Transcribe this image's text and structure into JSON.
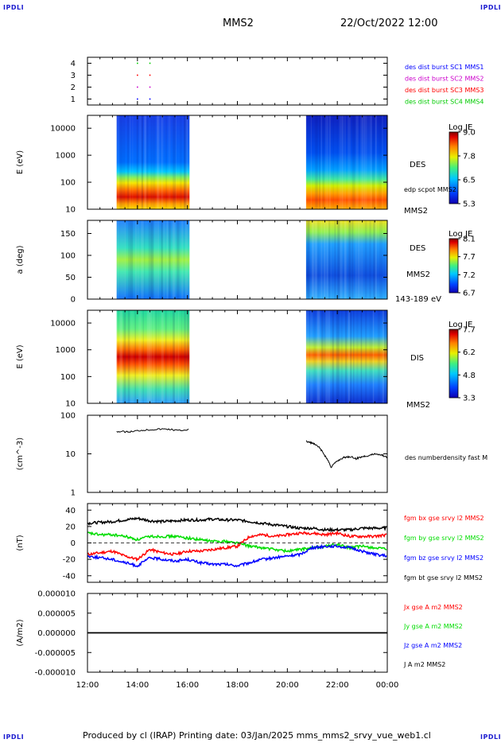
{
  "header": {
    "corner_tl": "IPDLI",
    "corner_tr": "IPDLI",
    "corner_bl": "IPDLI",
    "corner_br": "IPDLI",
    "spacecraft": "MMS2",
    "date_time": "22/Oct/2022 12:00"
  },
  "footer": {
    "credit": "Produced by cl (IRAP)   Printing date: 03/Jan/2025   mms_mms2_srvy_vue_web1.cl"
  },
  "colors": {
    "mms1": "#0000ff",
    "mms2": "#cc00cc",
    "mms3": "#ff0000",
    "mms4": "#00cc00",
    "bx": "#ff0000",
    "by": "#00dd00",
    "bz": "#0000ff",
    "bt": "#000000"
  },
  "chart_data": [
    {
      "type": "scatter",
      "panel": "burst",
      "yticks": [
        "4",
        "3",
        "2",
        "1"
      ],
      "ylim": [
        0.5,
        4.5
      ],
      "series": [
        {
          "name": "des dist burst SC1 MMS1",
          "color": "#0000ff",
          "y": 1,
          "x": [
            "14:00",
            "14:30"
          ]
        },
        {
          "name": "des dist burst SC2 MMS2",
          "color": "#cc00cc",
          "y": 2,
          "x": [
            "14:00",
            "14:30"
          ]
        },
        {
          "name": "des dist burst SC3 MMS3",
          "color": "#ff0000",
          "y": 3,
          "x": [
            "14:00",
            "14:30"
          ]
        },
        {
          "name": "des dist burst SC4 MMS4",
          "color": "#00cc00",
          "y": 4,
          "x": [
            "14:00",
            "14:30"
          ]
        }
      ]
    },
    {
      "type": "heatmap",
      "panel": "des_energy",
      "ylabel": "E (eV)",
      "yscale": "log",
      "ylim": [
        10,
        30000
      ],
      "yticks": [
        "10000",
        "1000",
        "100",
        "10"
      ],
      "label": "DES",
      "sublabel": "MMS2",
      "overlay_label": "edp scpot MMS2",
      "colorbar": {
        "title": "Log JE",
        "ticks": [
          "9.0",
          "7.8",
          "6.5",
          "5.3"
        ],
        "range": [
          5.3,
          9.0
        ]
      },
      "data_intervals": [
        [
          "13:10",
          "16:05"
        ],
        [
          "20:45",
          "00:00"
        ]
      ]
    },
    {
      "type": "heatmap",
      "panel": "des_pitch",
      "ylabel": "a (deg)",
      "ylim": [
        0,
        180
      ],
      "yticks": [
        "150",
        "100",
        "50",
        "0"
      ],
      "label": "DES",
      "sublabel": "MMS2",
      "energy_range": "143-189 eV",
      "colorbar": {
        "title": "Log JE",
        "ticks": [
          "8.1",
          "7.7",
          "7.2",
          "6.7"
        ],
        "range": [
          6.7,
          8.1
        ]
      },
      "data_intervals": [
        [
          "13:10",
          "16:05"
        ],
        [
          "20:45",
          "00:00"
        ]
      ]
    },
    {
      "type": "heatmap",
      "panel": "dis_energy",
      "ylabel": "E (eV)",
      "yscale": "log",
      "ylim": [
        10,
        30000
      ],
      "yticks": [
        "10000",
        "1000",
        "100",
        "10"
      ],
      "label": "DIS",
      "sublabel": "MMS2",
      "colorbar": {
        "title": "Log JE",
        "ticks": [
          "7.7",
          "6.2",
          "4.8",
          "3.3"
        ],
        "range": [
          3.3,
          7.7
        ]
      },
      "data_intervals": [
        [
          "13:10",
          "16:05"
        ],
        [
          "20:45",
          "00:00"
        ]
      ]
    },
    {
      "type": "line",
      "panel": "density",
      "ylabel": "(cm^-3)",
      "yscale": "log",
      "ylim": [
        1,
        100
      ],
      "yticks": [
        "100",
        "10",
        "1"
      ],
      "series": [
        {
          "name": "des numberdensity fast M",
          "color": "#000000",
          "segments": [
            {
              "x": [
                "13:10",
                "13:40",
                "14:10",
                "14:40",
                "15:10",
                "15:40",
                "16:05"
              ],
              "y": [
                38,
                37,
                41,
                43,
                44,
                40,
                43
              ]
            },
            {
              "x": [
                "20:45",
                "21:00",
                "21:15",
                "21:30",
                "21:45",
                "22:00",
                "22:15",
                "22:30",
                "22:45",
                "23:00",
                "23:15",
                "23:30",
                "23:45",
                "00:00"
              ],
              "y": [
                21,
                19,
                15,
                9,
                4.5,
                6.5,
                8,
                8.5,
                7.5,
                8.5,
                9,
                10,
                9.5,
                8
              ]
            }
          ]
        }
      ]
    },
    {
      "type": "line",
      "panel": "magnetic_field",
      "ylabel": "(nT)",
      "ylim": [
        -48,
        48
      ],
      "yticks": [
        "40",
        "20",
        "0",
        "-20",
        "-40"
      ],
      "x": [
        "12:00",
        "12:30",
        "13:00",
        "13:30",
        "14:00",
        "14:30",
        "15:00",
        "15:30",
        "16:00",
        "16:30",
        "17:00",
        "17:30",
        "18:00",
        "18:30",
        "19:00",
        "19:30",
        "20:00",
        "20:30",
        "21:00",
        "21:30",
        "22:00",
        "22:30",
        "23:00",
        "23:30",
        "00:00"
      ],
      "series": [
        {
          "name": "fgm bx gse srvy l2 MMS2",
          "color": "#ff0000",
          "values": [
            -14,
            -12,
            -10,
            -16,
            -20,
            -8,
            -12,
            -14,
            -10,
            -10,
            -8,
            -6,
            -4,
            8,
            10,
            8,
            10,
            12,
            12,
            10,
            12,
            8,
            8,
            8,
            10
          ]
        },
        {
          "name": "fgm by gse srvy l2 MMS2",
          "color": "#00dd00",
          "values": [
            12,
            10,
            10,
            8,
            4,
            8,
            8,
            8,
            6,
            4,
            2,
            2,
            0,
            -4,
            -6,
            -8,
            -10,
            -8,
            -6,
            -4,
            -2,
            -6,
            -4,
            -6,
            -8
          ]
        },
        {
          "name": "fgm bz gse srvy l2 MMS2",
          "color": "#0000ff",
          "values": [
            -16,
            -18,
            -20,
            -24,
            -28,
            -18,
            -20,
            -22,
            -20,
            -24,
            -26,
            -26,
            -28,
            -24,
            -20,
            -18,
            -16,
            -14,
            -6,
            -4,
            -4,
            -6,
            -10,
            -14,
            -16
          ]
        },
        {
          "name": "fgm bt gse srvy l2 MMS2",
          "color": "#000000",
          "values": [
            24,
            25,
            26,
            28,
            30,
            27,
            26,
            27,
            28,
            28,
            29,
            28,
            28,
            26,
            24,
            22,
            20,
            18,
            18,
            16,
            16,
            16,
            18,
            18,
            18
          ]
        }
      ]
    },
    {
      "type": "line",
      "panel": "current_density",
      "ylabel": "(A/m2)",
      "ylim": [
        -1e-05,
        1e-05
      ],
      "yticks": [
        "0.000010",
        "0.000005",
        "0.000000",
        "-0.000005",
        "-0.000010"
      ],
      "series": [
        {
          "name": "Jx gse A m2 MMS2",
          "color": "#ff0000"
        },
        {
          "name": "Jy gse A m2 MMS2",
          "color": "#00dd00"
        },
        {
          "name": "Jz gse A m2 MMS2",
          "color": "#0000ff"
        },
        {
          "name": "J A m2 MMS2",
          "color": "#000000",
          "values": [
            0,
            0
          ]
        }
      ]
    }
  ],
  "time_axis": {
    "ticks": [
      "12:00",
      "14:00",
      "16:00",
      "18:00",
      "20:00",
      "22:00",
      "00:00"
    ],
    "range_hours": [
      12,
      24
    ]
  }
}
